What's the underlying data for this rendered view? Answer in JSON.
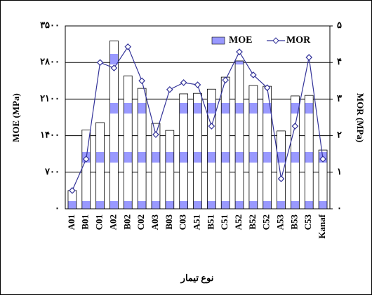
{
  "chart_data": {
    "type": "bar-line",
    "y_label": "MOE (MPa)",
    "y2_label": "MOR (MPa)",
    "x_label": "نوع تیمار",
    "categories": [
      "A01",
      "B01",
      "C01",
      "A02",
      "B02",
      "C02",
      "A03",
      "B03",
      "C03",
      "A51",
      "B51",
      "C51",
      "A52",
      "B52",
      "C52",
      "A53",
      "B53",
      "C53",
      "Kanaf"
    ],
    "series": [
      {
        "name": "MOE",
        "type": "bar",
        "color": "#9999ff",
        "axis": "y",
        "values": [
          350,
          1510,
          1650,
          3215,
          2545,
          2305,
          1635,
          1500,
          2200,
          2210,
          2290,
          2520,
          2830,
          2360,
          2345,
          1490,
          2160,
          2170,
          1125
        ]
      },
      {
        "name": "MOR",
        "type": "line",
        "color": "#333399",
        "axis": "y2",
        "values": [
          0.5,
          1.36,
          4.0,
          3.85,
          4.43,
          3.5,
          2.03,
          3.26,
          3.45,
          3.39,
          2.26,
          3.52,
          4.29,
          3.66,
          3.31,
          0.82,
          2.26,
          4.14,
          1.36
        ]
      }
    ],
    "ylim": [
      0,
      3500
    ],
    "yticks": [
      {
        "value": 0,
        "label": "۰"
      },
      {
        "value": 700,
        "label": "۷۰۰"
      },
      {
        "value": 1400,
        "label": "۱۴۰۰"
      },
      {
        "value": 2100,
        "label": "۲۱۰۰"
      },
      {
        "value": 2800,
        "label": "۲۸۰۰"
      },
      {
        "value": 3500,
        "label": "۳۵۰۰"
      }
    ],
    "y2lim": [
      0,
      5
    ],
    "y2ticks": [
      {
        "value": 0,
        "label": "۰"
      },
      {
        "value": 1,
        "label": "۱"
      },
      {
        "value": 2,
        "label": "۲"
      },
      {
        "value": 3,
        "label": "۳"
      },
      {
        "value": 4,
        "label": "۴"
      },
      {
        "value": 5,
        "label": "۵"
      }
    ],
    "grid": true,
    "legend": "top-right"
  }
}
